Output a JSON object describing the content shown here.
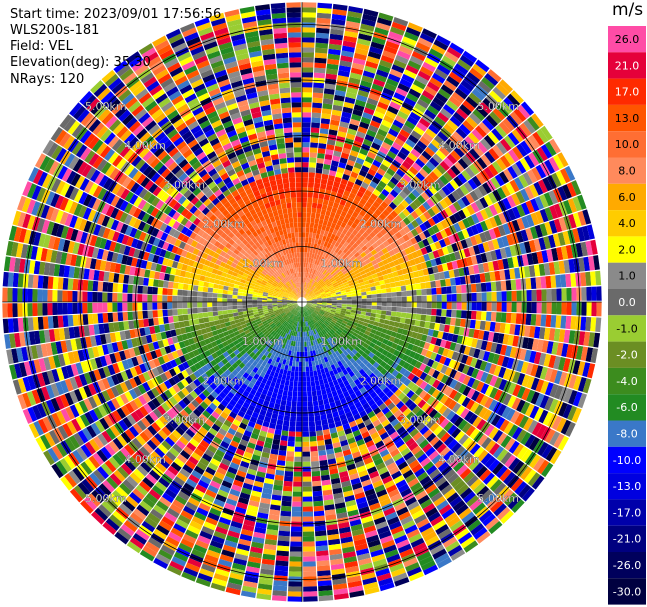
{
  "header": {
    "start_time": "Start time: 2023/09/01 17:56:56",
    "instrument": "WLS200s-181",
    "field": "Field: VEL",
    "elevation": "Elevation(deg): 35.30",
    "nrays": "NRays: 120"
  },
  "colorbar": {
    "unit": "m/s",
    "levels": [
      {
        "label": "26.0",
        "color": "#ff4ca6"
      },
      {
        "label": "21.0",
        "color": "#e5003a"
      },
      {
        "label": "17.0",
        "color": "#ff2a00"
      },
      {
        "label": "13.0",
        "color": "#ff5500"
      },
      {
        "label": "10.0",
        "color": "#ff6e33"
      },
      {
        "label": "8.0",
        "color": "#ff8a5c"
      },
      {
        "label": "6.0",
        "color": "#ffaa00"
      },
      {
        "label": "4.0",
        "color": "#ffcc00"
      },
      {
        "label": "2.0",
        "color": "#ffff00"
      },
      {
        "label": "1.0",
        "color": "#8a8a8a"
      },
      {
        "label": "0.0",
        "color": "#6a6a6a"
      },
      {
        "label": "-1.0",
        "color": "#9acd32"
      },
      {
        "label": "-2.0",
        "color": "#6b8e23"
      },
      {
        "label": "-4.0",
        "color": "#3c8c1e"
      },
      {
        "label": "-6.0",
        "color": "#228b22"
      },
      {
        "label": "-8.0",
        "color": "#3a78c8"
      },
      {
        "label": "-10.0",
        "color": "#0000ff"
      },
      {
        "label": "-13.0",
        "color": "#0000e0"
      },
      {
        "label": "-17.0",
        "color": "#0000aa"
      },
      {
        "label": "-21.0",
        "color": "#000080"
      },
      {
        "label": "-26.0",
        "color": "#00005c"
      },
      {
        "label": "-30.0",
        "color": "#000040"
      }
    ]
  },
  "chart_data": {
    "type": "heatmap",
    "projection": "polar-ppi",
    "field": "VEL",
    "unit": "m/s",
    "range_rings_km": [
      1.0,
      2.0,
      3.0,
      4.0,
      5.0
    ],
    "ring_labels": [
      "1.00km",
      "2.00km",
      "3.00km",
      "4.00km",
      "5.00km"
    ],
    "max_range_km": 5.4,
    "nrays": 120,
    "valid_range_km": 2.3,
    "pattern": "positive velocities (orange/red) to the north, negative velocities (blue) to the south, near-zero (gray/green/yellow) along the east-west line; noisy returns beyond ~2.3 km"
  }
}
